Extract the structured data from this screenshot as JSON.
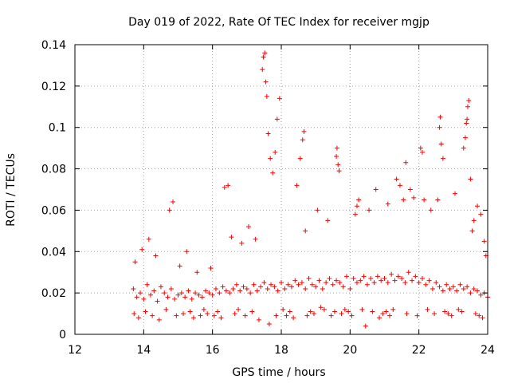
{
  "chart_data": {
    "type": "scatter",
    "title": "Day 019 of 2022, Rate Of TEC Index for receiver mgjp",
    "xlabel": "GPS time / hours",
    "ylabel": "ROTI / TECUs",
    "xlim": [
      12,
      24
    ],
    "ylim": [
      0,
      0.14
    ],
    "xticks": [
      12,
      14,
      16,
      18,
      20,
      22,
      24
    ],
    "xtick_labels": [
      "12",
      "14",
      "16",
      "18",
      "20",
      "22",
      "24"
    ],
    "yticks": [
      0,
      0.02,
      0.04,
      0.06,
      0.08,
      0.1,
      0.12,
      0.14
    ],
    "ytick_labels": [
      "0",
      "0.02",
      "0.04",
      "0.06",
      "0.08",
      "0.1",
      "0.12",
      "0.14"
    ],
    "grid": true,
    "marker": "+",
    "color": "#ff0000",
    "series": [
      {
        "name": "ROTI",
        "x": [
          13.7,
          13.8,
          13.9,
          14.0,
          14.1,
          14.2,
          14.3,
          14.4,
          14.5,
          14.6,
          14.7,
          14.8,
          14.9,
          15.0,
          15.1,
          15.2,
          15.3,
          15.4,
          15.5,
          15.6,
          15.7,
          15.8,
          15.9,
          16.0,
          16.1,
          16.2,
          16.3,
          16.4,
          16.5,
          16.6,
          16.7,
          16.8,
          16.9,
          17.0,
          17.1,
          17.2,
          17.3,
          17.4,
          17.5,
          17.6,
          17.7,
          17.8,
          17.9,
          18.0,
          18.1,
          18.2,
          18.3,
          18.4,
          18.5,
          18.6,
          18.7,
          18.8,
          18.9,
          19.0,
          19.1,
          19.2,
          19.3,
          19.4,
          19.5,
          19.6,
          19.7,
          19.8,
          19.9,
          20.0,
          20.1,
          20.2,
          20.3,
          20.4,
          20.5,
          20.6,
          20.7,
          20.8,
          20.9,
          21.0,
          21.1,
          21.2,
          21.3,
          21.4,
          21.5,
          21.6,
          21.7,
          21.8,
          21.9,
          22.0,
          22.1,
          22.2,
          22.3,
          22.4,
          22.5,
          22.6,
          22.7,
          22.8,
          22.9,
          23.0,
          23.1,
          23.2,
          23.3,
          23.4,
          23.5,
          23.6,
          23.7,
          23.8,
          23.9,
          24.0,
          13.75,
          13.95,
          14.15,
          14.35,
          14.75,
          14.85,
          15.05,
          15.25,
          15.55,
          15.95,
          16.35,
          16.45,
          16.55,
          16.85,
          17.05,
          17.25,
          17.45,
          17.48,
          17.52,
          17.55,
          17.58,
          17.62,
          17.68,
          17.75,
          17.82,
          17.88,
          17.95,
          18.45,
          18.55,
          18.62,
          18.66,
          18.7,
          19.05,
          19.35,
          19.6,
          19.62,
          19.65,
          19.68,
          20.15,
          20.2,
          20.25,
          20.55,
          20.75,
          21.1,
          21.35,
          21.45,
          21.55,
          21.62,
          21.75,
          21.85,
          22.05,
          22.1,
          22.15,
          22.35,
          22.55,
          22.6,
          22.62,
          22.65,
          22.7,
          23.05,
          23.3,
          23.35,
          23.38,
          23.4,
          23.42,
          23.45,
          23.5,
          23.55,
          23.6,
          23.7,
          23.8,
          23.9,
          23.95,
          13.72,
          13.85,
          14.05,
          14.25,
          14.45,
          14.65,
          14.95,
          15.15,
          15.35,
          15.45,
          15.65,
          15.75,
          15.85,
          16.05,
          16.15,
          16.25,
          16.65,
          16.75,
          16.95,
          17.15,
          17.35,
          17.65,
          17.85,
          18.05,
          18.15,
          18.25,
          18.35,
          18.75,
          18.85,
          18.95,
          19.15,
          19.25,
          19.45,
          19.55,
          19.75,
          19.85,
          19.95,
          20.05,
          20.35,
          20.45,
          20.65,
          20.85,
          20.95,
          21.05,
          21.15,
          21.25,
          21.65,
          21.95,
          22.25,
          22.45,
          22.75,
          22.85,
          22.95,
          23.15,
          23.25,
          23.65,
          23.75,
          23.85
        ],
        "y": [
          0.022,
          0.018,
          0.02,
          0.017,
          0.024,
          0.019,
          0.021,
          0.016,
          0.023,
          0.02,
          0.018,
          0.022,
          0.017,
          0.019,
          0.02,
          0.018,
          0.021,
          0.017,
          0.02,
          0.019,
          0.018,
          0.021,
          0.02,
          0.019,
          0.022,
          0.02,
          0.023,
          0.021,
          0.02,
          0.022,
          0.024,
          0.021,
          0.023,
          0.022,
          0.02,
          0.024,
          0.021,
          0.023,
          0.025,
          0.022,
          0.024,
          0.023,
          0.021,
          0.025,
          0.022,
          0.024,
          0.023,
          0.026,
          0.024,
          0.025,
          0.022,
          0.027,
          0.024,
          0.023,
          0.026,
          0.022,
          0.025,
          0.027,
          0.024,
          0.026,
          0.025,
          0.023,
          0.028,
          0.022,
          0.027,
          0.025,
          0.026,
          0.028,
          0.024,
          0.027,
          0.025,
          0.028,
          0.026,
          0.027,
          0.025,
          0.029,
          0.026,
          0.028,
          0.027,
          0.025,
          0.03,
          0.026,
          0.028,
          0.025,
          0.027,
          0.024,
          0.026,
          0.022,
          0.025,
          0.023,
          0.021,
          0.024,
          0.022,
          0.023,
          0.021,
          0.024,
          0.022,
          0.023,
          0.02,
          0.022,
          0.021,
          0.019,
          0.02,
          0.018,
          0.035,
          0.041,
          0.046,
          0.038,
          0.06,
          0.064,
          0.033,
          0.04,
          0.03,
          0.032,
          0.071,
          0.072,
          0.047,
          0.044,
          0.052,
          0.046,
          0.128,
          0.134,
          0.136,
          0.122,
          0.115,
          0.097,
          0.085,
          0.078,
          0.088,
          0.104,
          0.114,
          0.072,
          0.085,
          0.094,
          0.098,
          0.05,
          0.06,
          0.055,
          0.086,
          0.09,
          0.082,
          0.079,
          0.058,
          0.062,
          0.065,
          0.06,
          0.07,
          0.063,
          0.075,
          0.072,
          0.065,
          0.083,
          0.07,
          0.066,
          0.09,
          0.088,
          0.065,
          0.06,
          0.065,
          0.1,
          0.105,
          0.092,
          0.085,
          0.068,
          0.09,
          0.095,
          0.102,
          0.104,
          0.11,
          0.113,
          0.075,
          0.05,
          0.055,
          0.062,
          0.058,
          0.045,
          0.038,
          0.01,
          0.008,
          0.011,
          0.009,
          0.007,
          0.012,
          0.009,
          0.01,
          0.011,
          0.008,
          0.009,
          0.012,
          0.01,
          0.009,
          0.011,
          0.008,
          0.01,
          0.012,
          0.009,
          0.011,
          0.007,
          0.005,
          0.009,
          0.012,
          0.009,
          0.011,
          0.008,
          0.009,
          0.011,
          0.01,
          0.013,
          0.012,
          0.009,
          0.011,
          0.01,
          0.012,
          0.011,
          0.009,
          0.012,
          0.004,
          0.011,
          0.008,
          0.01,
          0.011,
          0.009,
          0.012,
          0.01,
          0.009,
          0.012,
          0.01,
          0.011,
          0.01,
          0.009,
          0.012,
          0.011,
          0.01,
          0.009,
          0.008
        ]
      }
    ]
  }
}
